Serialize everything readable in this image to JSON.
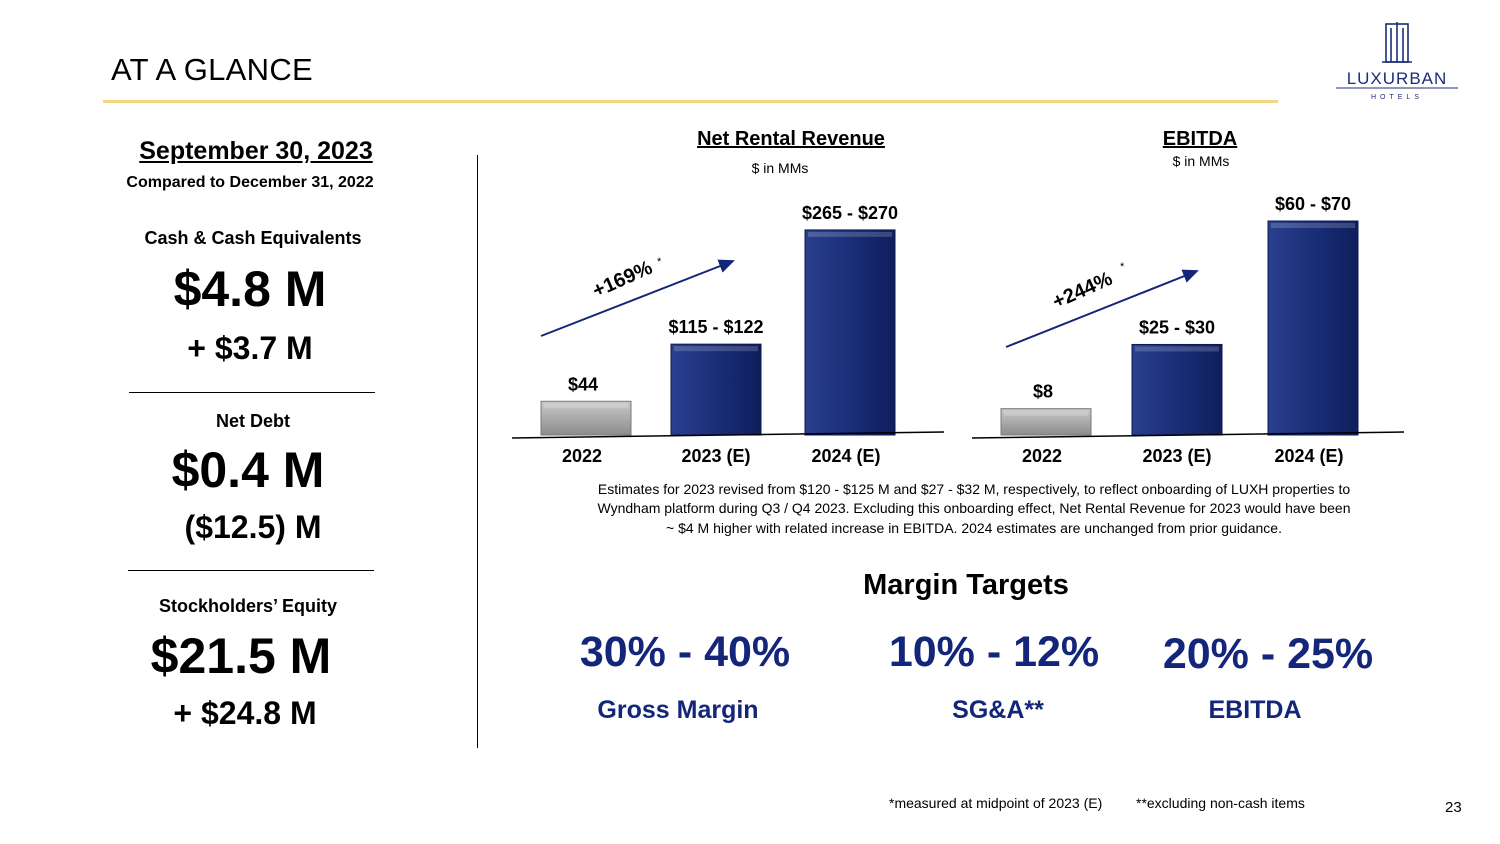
{
  "slide": {
    "title": "AT A GLANCE",
    "page_number": "23",
    "logo": {
      "name": "LUXURBAN",
      "sub": "HOTELS"
    }
  },
  "summary": {
    "date_heading": "September 30, 2023",
    "compared_to": "Compared to December 31, 2022",
    "metrics": [
      {
        "label": "Cash & Cash Equivalents",
        "value": "$4.8 M",
        "change": "+ $3.7 M"
      },
      {
        "label": "Net Debt",
        "value": "$0.4 M",
        "change": "($12.5) M"
      },
      {
        "label": "Stockholders’ Equity",
        "value": "$21.5 M",
        "change": "+ $24.8 M"
      }
    ]
  },
  "chart_data": [
    {
      "type": "bar",
      "title": "Net Rental Revenue",
      "subtitle": "$ in MMs",
      "categories": [
        "2022",
        "2023 (E)",
        "2024 (E)"
      ],
      "values": [
        44,
        118.5,
        267.5
      ],
      "data_labels": [
        "$44",
        "$115 - $122",
        "$265 - $270"
      ],
      "growth_annotation": "+169%",
      "growth_marker": "*",
      "bar_colors": [
        "#a6a6a6",
        "#1a2e78",
        "#1a2e78"
      ],
      "ylim": [
        0,
        270
      ]
    },
    {
      "type": "bar",
      "title": "EBITDA",
      "subtitle": "$ in MMs",
      "categories": [
        "2022",
        "2023 (E)",
        "2024 (E)"
      ],
      "values": [
        8,
        27.5,
        65
      ],
      "data_labels": [
        "$8",
        "$25 - $30",
        "$60 - $70"
      ],
      "growth_annotation": "+244%",
      "growth_marker": "*",
      "bar_colors": [
        "#a6a6a6",
        "#1a2e78",
        "#1a2e78"
      ],
      "ylim": [
        0,
        65
      ]
    }
  ],
  "estimates_note": [
    "Estimates for 2023 revised from $120 - $125 M and $27 - $32 M, respectively, to reflect onboarding of LUXH properties to",
    "Wyndham platform during Q3 / Q4 2023.  Excluding this onboarding effect, Net Rental Revenue for 2023 would have been",
    "~ $4 M higher with related increase in EBITDA.  2024 estimates are unchanged from prior guidance."
  ],
  "margin_targets": {
    "heading": "Margin Targets",
    "items": [
      {
        "range": "30% - 40%",
        "label": "Gross Margin"
      },
      {
        "range": "10% - 12%",
        "label": "SG&A**"
      },
      {
        "range": "20% - 25%",
        "label": "EBITDA"
      }
    ]
  },
  "footnotes": {
    "midpoint": "*measured at midpoint of 2023 (E)",
    "non_cash": "**excluding non-cash items"
  },
  "colors": {
    "navy": "#14267a",
    "gold_rule": "#f2d77e",
    "gray_bar": "#a6a6a6"
  }
}
